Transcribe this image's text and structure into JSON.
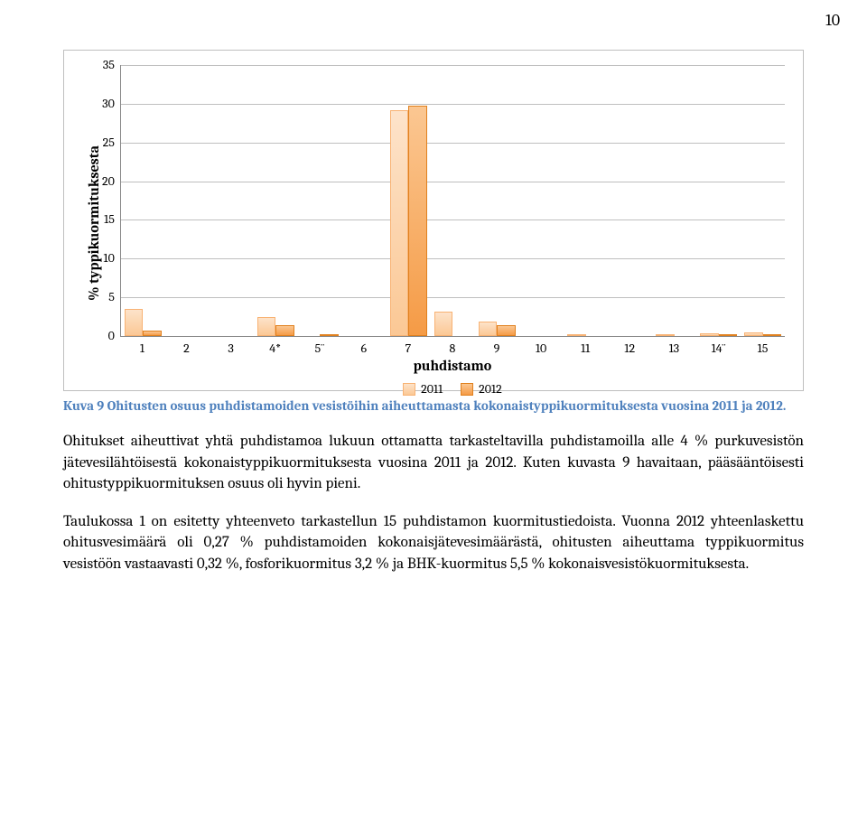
{
  "page_number": "10",
  "chart": {
    "type": "bar",
    "y_axis_label": "% typpikuormituksesta",
    "x_axis_label": "puhdistamo",
    "ylim": [
      0,
      35
    ],
    "ytick_step": 5,
    "yticks": [
      "35",
      "30",
      "25",
      "20",
      "15",
      "10",
      "5",
      "0"
    ],
    "categories": [
      "1",
      "2",
      "3",
      "4*",
      "5¨",
      "6",
      "7",
      "8",
      "9",
      "10",
      "11",
      "12",
      "13",
      "14¨",
      "15"
    ],
    "series": [
      {
        "name": "2011",
        "color_fill_top": "#fde3ca",
        "color_fill_bottom": "#fbc895",
        "border": "#f8b273",
        "values": [
          3.5,
          0.0,
          0.0,
          2.4,
          0.0,
          0.0,
          29.2,
          3.2,
          1.9,
          0.0,
          0.2,
          0.0,
          0.2,
          0.4,
          0.5
        ]
      },
      {
        "name": "2012",
        "color_fill_top": "#fbc792",
        "color_fill_bottom": "#f59b46",
        "border": "#e0801d",
        "values": [
          0.7,
          0.0,
          0.0,
          1.4,
          0.1,
          0.0,
          29.7,
          0.0,
          1.4,
          0.0,
          0.0,
          0.0,
          0.0,
          0.2,
          0.1
        ]
      }
    ],
    "background_color": "#ffffff",
    "grid_color": "#bfbfbf"
  },
  "caption": "Kuva 9 Ohitusten osuus puhdistamoiden vesistöihin aiheuttamasta kokonaistyppikuormituksesta vuosina 2011 ja 2012.",
  "paragraph1": "Ohitukset aiheuttivat yhtä puhdistamoa lukuun ottamatta tarkasteltavilla puhdistamoilla alle 4 % purkuvesistön jätevesilähtöisestä kokonaistyppikuormituksesta vuosina 2011 ja 2012. Kuten kuvasta 9 havaitaan, pääsääntöisesti ohitustyppikuormituksen osuus oli hyvin pieni.",
  "paragraph2": "Taulukossa 1 on esitetty yhteenveto tarkastellun 15 puhdistamon kuormitustiedoista. Vuonna 2012 yhteenlaskettu ohitusvesimäärä oli 0,27 % puhdistamoiden kokonaisjätevesimäärästä, ohitusten aiheuttama typpikuormitus vesistöön vastaavasti 0,32 %, fosforikuormitus 3,2 % ja BHK-kuormitus 5,5 % kokonaisvesistökuormituksesta."
}
